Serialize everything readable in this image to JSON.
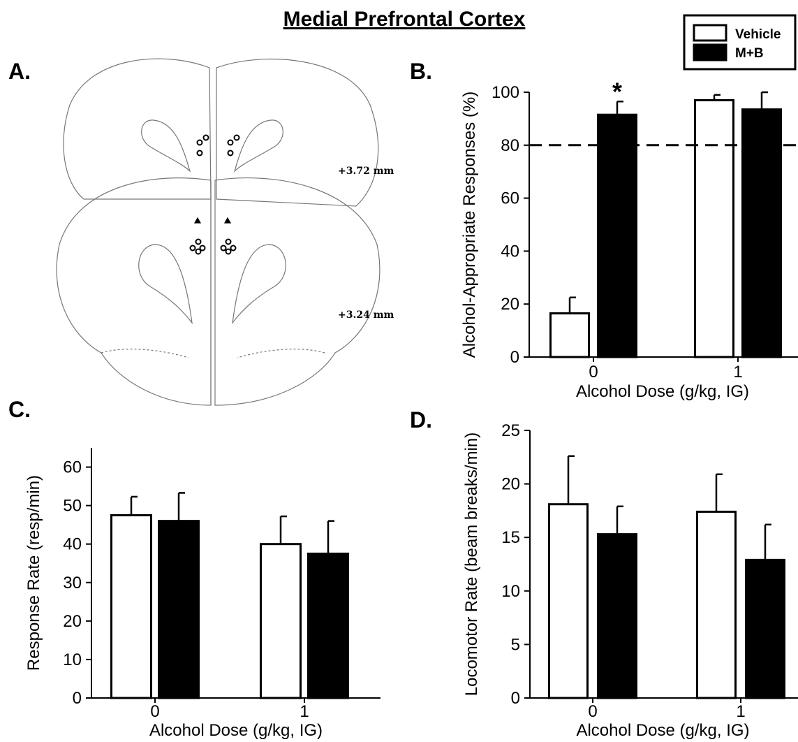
{
  "figure_title": "Medial Prefrontal Cortex",
  "panel_labels": [
    "A.",
    "B.",
    "C.",
    "D."
  ],
  "legend": [
    {
      "label": "Vehicle",
      "color": "#ffffff"
    },
    {
      "label": "M+B",
      "color": "#000000"
    }
  ],
  "atlas": {
    "section_labels": [
      "+3.72 mm",
      "+3.24 mm"
    ]
  },
  "chart_data": [
    {
      "panel": "B.",
      "type": "bar",
      "categories": [
        "0",
        "1"
      ],
      "series": [
        {
          "name": "Vehicle",
          "values": [
            16.5,
            97.0
          ],
          "errors": [
            6.0,
            2.0
          ]
        },
        {
          "name": "M+B",
          "values": [
            91.5,
            93.5
          ],
          "errors": [
            5.0,
            6.5
          ]
        }
      ],
      "xlabel": "Alcohol Dose (g/kg, IG)",
      "ylabel": "Alcohol-Appropriate Responses (%)",
      "ylim": [
        0,
        100
      ],
      "yticks": [
        0,
        20,
        40,
        60,
        80,
        100
      ],
      "reference_line": {
        "y": 80,
        "style": "dashed"
      },
      "annotations": [
        {
          "text": "*",
          "category": "0",
          "series": "M+B"
        }
      ]
    },
    {
      "panel": "C.",
      "type": "bar",
      "categories": [
        "0",
        "1"
      ],
      "series": [
        {
          "name": "Vehicle",
          "values": [
            47.5,
            40.0
          ],
          "errors": [
            4.8,
            7.2
          ]
        },
        {
          "name": "M+B",
          "values": [
            46.0,
            37.5
          ],
          "errors": [
            7.3,
            8.5
          ]
        }
      ],
      "xlabel": "Alcohol Dose (g/kg, IG)",
      "ylabel": "Response Rate (resp/min)",
      "ylim": [
        0,
        65
      ],
      "yticks": [
        0,
        10,
        20,
        30,
        40,
        50,
        60
      ]
    },
    {
      "panel": "D.",
      "type": "bar",
      "categories": [
        "0",
        "1"
      ],
      "series": [
        {
          "name": "Vehicle",
          "values": [
            18.1,
            17.4
          ],
          "errors": [
            4.5,
            3.5
          ]
        },
        {
          "name": "M+B",
          "values": [
            15.3,
            12.9
          ],
          "errors": [
            2.6,
            3.3
          ]
        }
      ],
      "xlabel": "Alcohol Dose (g/kg, IG)",
      "ylabel": "Locomotor Rate (beam breaks/min)",
      "ylim": [
        0,
        25
      ],
      "yticks": [
        0,
        5,
        10,
        15,
        20,
        25
      ]
    }
  ]
}
